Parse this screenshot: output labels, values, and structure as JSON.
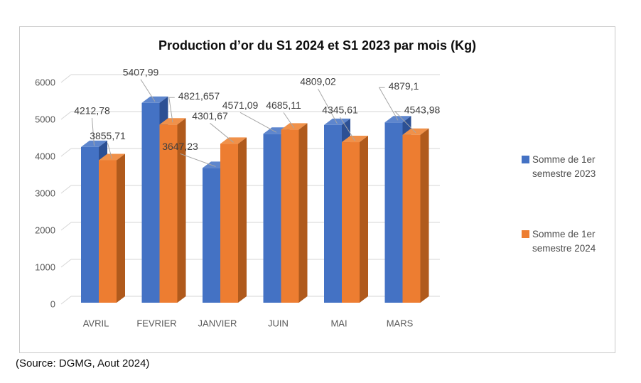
{
  "chart": {
    "title": "Production d’or du S1 2024 et S1 2023 par mois (Kg)",
    "source_note": "(Source: DGMG, Aout 2024)"
  },
  "legend": {
    "items": [
      {
        "line1": "Somme de 1er",
        "line2": "semestre 2023",
        "color": "#4472C4"
      },
      {
        "line1": "Somme de 1er",
        "line2": "semestre 2024",
        "color": "#ED7D31"
      }
    ]
  },
  "chart_data": {
    "type": "bar",
    "subtype": "3d-clustered-column",
    "title": "Production d’or du S1 2024 et S1 2023 par mois (Kg)",
    "categories": [
      "AVRIL",
      "FEVRIER",
      "JANVIER",
      "JUIN",
      "MAI",
      "MARS"
    ],
    "series": [
      {
        "name": "Somme de 1er semestre 2023",
        "color": "#4472C4",
        "top_color": "#5E86CD",
        "side_color": "#2C5094",
        "values": [
          4212.78,
          5407.99,
          3647.23,
          4571.09,
          4809.02,
          4879.1
        ],
        "data_labels": [
          "4212,78",
          "5407,99",
          "3647,23",
          "4571,09",
          "4809,02",
          "4879,1"
        ]
      },
      {
        "name": "Somme de 1er semestre 2024",
        "color": "#ED7D31",
        "top_color": "#F0914A",
        "side_color": "#B05A1C",
        "values": [
          3855.71,
          4821.657,
          4301.67,
          4685.11,
          4345.61,
          4543.98
        ],
        "data_labels": [
          "3855,71",
          "4821,657",
          "4301,67",
          "4685,11",
          "4345,61",
          "4543,98"
        ]
      }
    ],
    "xlabel": "",
    "ylabel": "",
    "ylim": [
      0,
      6000
    ],
    "ytick_interval": 1000,
    "yticks": [
      "0",
      "1000",
      "2000",
      "3000",
      "4000",
      "5000",
      "6000"
    ],
    "grid": true,
    "legend_position": "right",
    "colors": {
      "gridline": "#d6d6d6",
      "axis_text": "#595959",
      "data_label_text": "#3f3f3f",
      "leader_line": "#a6a6a6"
    }
  }
}
